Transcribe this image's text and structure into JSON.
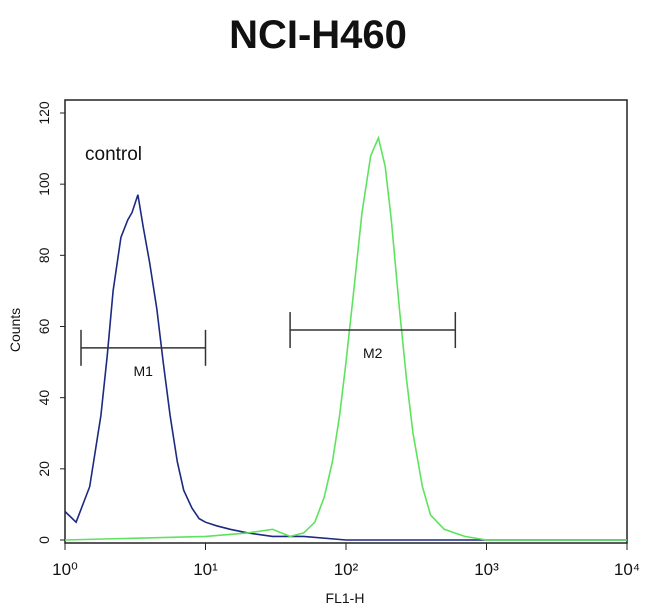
{
  "chart_data": {
    "type": "histogram-overlay",
    "title": "NCI-H460",
    "xlabel": "FL1-H",
    "ylabel": "Counts",
    "annotation": "control",
    "log_x": true,
    "xlim": [
      1,
      10000
    ],
    "xticks": [
      {
        "value": 1,
        "label": "10⁰"
      },
      {
        "value": 10,
        "label": "10¹"
      },
      {
        "value": 100,
        "label": "10²"
      },
      {
        "value": 1000,
        "label": "10³"
      },
      {
        "value": 10000,
        "label": "10⁴"
      }
    ],
    "ylim": [
      0,
      120
    ],
    "yticks": [
      0,
      20,
      40,
      60,
      80,
      100,
      120
    ],
    "series": [
      {
        "color": "#1c2a80",
        "x": [
          1,
          1.2,
          1.5,
          1.8,
          2.0,
          2.2,
          2.5,
          2.8,
          3.0,
          3.3,
          3.6,
          4.0,
          4.5,
          5,
          5.6,
          6.3,
          7,
          8,
          9,
          10,
          12,
          15,
          20,
          30,
          50,
          100,
          300,
          1000,
          10000
        ],
        "values": [
          8,
          5,
          15,
          35,
          52,
          70,
          85,
          90,
          92,
          97,
          88,
          78,
          65,
          50,
          35,
          22,
          14,
          9,
          6,
          5,
          4,
          3,
          2,
          1,
          1,
          0,
          0,
          0,
          0
        ]
      },
      {
        "color": "#5ee35e",
        "x": [
          1,
          10,
          20,
          30,
          40,
          50,
          60,
          70,
          80,
          90,
          100,
          115,
          130,
          150,
          170,
          190,
          210,
          240,
          270,
          300,
          350,
          400,
          500,
          700,
          1000,
          10000
        ],
        "values": [
          0,
          1,
          2,
          3,
          1,
          2,
          5,
          12,
          22,
          35,
          50,
          72,
          92,
          108,
          113,
          105,
          90,
          65,
          45,
          30,
          15,
          7,
          3,
          1,
          0,
          0
        ]
      }
    ],
    "markers": [
      {
        "label": "M1",
        "x": [
          1.3,
          10
        ],
        "y": 54
      },
      {
        "label": "M2",
        "x": [
          40,
          600
        ],
        "y": 59
      }
    ]
  }
}
